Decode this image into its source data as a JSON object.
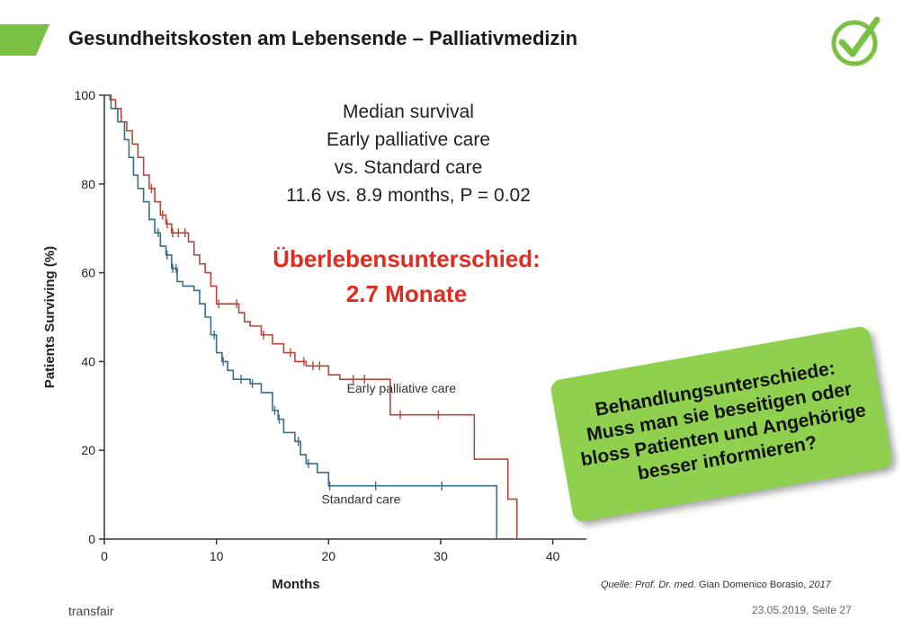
{
  "slide": {
    "title": "Gesundheitskosten am Lebensende – Palliativmedizin",
    "accent_color": "#7ac143",
    "callout_text": "Behandlungsunterschiede: Muss man sie beseitigen oder bloss Patienten und Angehörige besser informieren?",
    "source_prefix": "Quelle: Prof. Dr. med.",
    "source_name": "Gian Domenico Borasio,",
    "source_year": "2017",
    "footer_brand": "transfair",
    "footer_date": "23.05.2019, Seite 27",
    "icons": [
      "check-circle-icon",
      "green-parallelogram-logo"
    ]
  },
  "chart_data": {
    "type": "line",
    "xlabel": "Months",
    "ylabel": "Patients Surviving (%)",
    "xlim": [
      0,
      43
    ],
    "ylim": [
      0,
      100
    ],
    "xticks": [
      "0",
      "10",
      "20",
      "30",
      "40"
    ],
    "yticks": [
      "0",
      "20",
      "40",
      "60",
      "80",
      "100"
    ],
    "annotation_lines": [
      "Median survival",
      "Early palliative care",
      "vs. Standard care",
      "11.6 vs. 8.9 months, P = 0.02"
    ],
    "highlight_lines": [
      "Überlebensunterschied:",
      "2.7 Monate"
    ],
    "series": [
      {
        "name": "Early palliative care",
        "color": "#b5473c",
        "steps": [
          [
            0,
            100
          ],
          [
            0.5,
            99
          ],
          [
            1,
            97
          ],
          [
            1.5,
            94
          ],
          [
            2,
            92
          ],
          [
            2.5,
            89
          ],
          [
            3,
            86
          ],
          [
            3.5,
            82
          ],
          [
            4,
            79
          ],
          [
            4.5,
            76
          ],
          [
            5,
            73
          ],
          [
            5.5,
            71
          ],
          [
            6,
            69
          ],
          [
            7,
            69
          ],
          [
            7.5,
            67
          ],
          [
            8,
            64
          ],
          [
            8.5,
            62
          ],
          [
            9,
            60
          ],
          [
            9.5,
            57
          ],
          [
            10,
            53
          ],
          [
            11,
            53
          ],
          [
            12,
            51
          ],
          [
            12.5,
            49
          ],
          [
            13,
            48
          ],
          [
            14,
            46
          ],
          [
            15,
            44
          ],
          [
            16,
            42
          ],
          [
            17,
            40
          ],
          [
            18,
            39
          ],
          [
            19,
            39
          ],
          [
            20,
            37
          ],
          [
            21,
            36
          ],
          [
            25,
            36
          ],
          [
            25.5,
            28
          ],
          [
            26,
            28
          ],
          [
            33,
            28
          ],
          [
            33,
            18
          ],
          [
            36,
            18
          ],
          [
            36,
            9
          ],
          [
            36.8,
            9
          ],
          [
            36.8,
            0
          ]
        ],
        "censor_x": [
          4.2,
          5.2,
          5.6,
          6.1,
          6.6,
          7.2,
          10.2,
          11.8,
          14.2,
          16.6,
          17.8,
          18.6,
          19.2,
          22.2,
          23.2,
          26.4,
          29.8
        ]
      },
      {
        "name": "Standard care",
        "color": "#3a6d86",
        "steps": [
          [
            0,
            100
          ],
          [
            0.6,
            97
          ],
          [
            1.2,
            94
          ],
          [
            1.8,
            90
          ],
          [
            2.2,
            86
          ],
          [
            2.6,
            82
          ],
          [
            3,
            79
          ],
          [
            3.5,
            76
          ],
          [
            4,
            72
          ],
          [
            4.5,
            69
          ],
          [
            5,
            66
          ],
          [
            5.5,
            64
          ],
          [
            6,
            61
          ],
          [
            6.5,
            58
          ],
          [
            7,
            57
          ],
          [
            8,
            56
          ],
          [
            8.5,
            53
          ],
          [
            9,
            50
          ],
          [
            9.5,
            46
          ],
          [
            10,
            42
          ],
          [
            10.5,
            40
          ],
          [
            11,
            38
          ],
          [
            11.5,
            36
          ],
          [
            13,
            35
          ],
          [
            14,
            33
          ],
          [
            15,
            29
          ],
          [
            15.5,
            27
          ],
          [
            16,
            24
          ],
          [
            17,
            22
          ],
          [
            17.5,
            19
          ],
          [
            18,
            17
          ],
          [
            19,
            15
          ],
          [
            20,
            12
          ],
          [
            35,
            12
          ],
          [
            35,
            0
          ]
        ],
        "censor_x": [
          4.8,
          5.6,
          6.1,
          6.4,
          9.8,
          10.6,
          12.2,
          13.2,
          15.2,
          15.6,
          17.3,
          18.2,
          20.1,
          24.2,
          30.1
        ]
      }
    ]
  }
}
